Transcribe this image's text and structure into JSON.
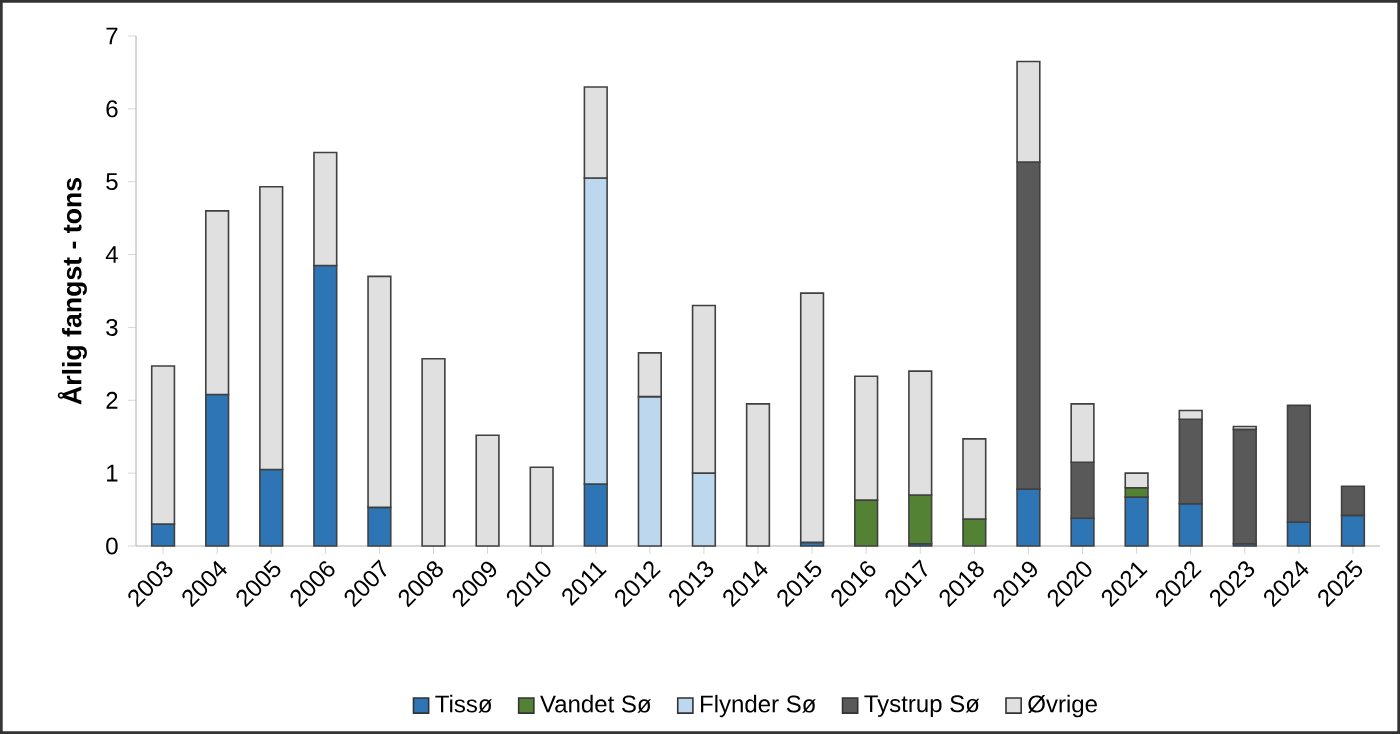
{
  "chart_data": {
    "type": "bar",
    "stacked": true,
    "ylabel": "Årlig fangst - tons",
    "categories": [
      "2003",
      "2004",
      "2005",
      "2006",
      "2007",
      "2008",
      "2009",
      "2010",
      "2011",
      "2012",
      "2013",
      "2014",
      "2015",
      "2016",
      "2017",
      "2018",
      "2019",
      "2020",
      "2021",
      "2022",
      "2023",
      "2024",
      "2025"
    ],
    "series": [
      {
        "name": "Tissø",
        "color": "#2e75b6",
        "values": [
          0.3,
          2.08,
          1.05,
          3.85,
          0.53,
          null,
          null,
          null,
          0.85,
          null,
          null,
          null,
          0.05,
          null,
          0.03,
          null,
          0.78,
          0.38,
          0.67,
          0.58,
          0.03,
          0.33,
          0.42
        ]
      },
      {
        "name": "Vandet Sø",
        "color": "#548235",
        "values": [
          null,
          null,
          null,
          null,
          null,
          null,
          null,
          null,
          null,
          null,
          null,
          null,
          null,
          0.63,
          0.67,
          0.37,
          null,
          null,
          0.13,
          null,
          null,
          null,
          null
        ]
      },
      {
        "name": "Flynder Sø",
        "color": "#bdd7ee",
        "values": [
          null,
          null,
          null,
          null,
          null,
          null,
          null,
          null,
          4.2,
          2.05,
          1.0,
          null,
          null,
          null,
          null,
          null,
          null,
          null,
          null,
          null,
          null,
          null,
          null
        ]
      },
      {
        "name": "Tystrup Sø",
        "color": "#595959",
        "values": [
          null,
          null,
          null,
          null,
          null,
          null,
          null,
          null,
          null,
          null,
          null,
          null,
          null,
          null,
          null,
          null,
          4.49,
          0.77,
          null,
          1.16,
          1.57,
          1.6,
          0.4
        ]
      },
      {
        "name": "Øvrige",
        "color": "#e0e0e0",
        "values": [
          2.17,
          2.52,
          3.88,
          1.55,
          3.17,
          2.57,
          1.52,
          1.08,
          1.25,
          0.6,
          2.3,
          1.95,
          3.42,
          1.7,
          1.7,
          1.1,
          1.38,
          0.8,
          0.2,
          0.12,
          0.04,
          null,
          null
        ]
      }
    ],
    "ylim": [
      0,
      7
    ],
    "yticks": [
      0,
      1,
      2,
      3,
      4,
      5,
      6,
      7
    ],
    "grid": false,
    "legend": "bottom"
  }
}
